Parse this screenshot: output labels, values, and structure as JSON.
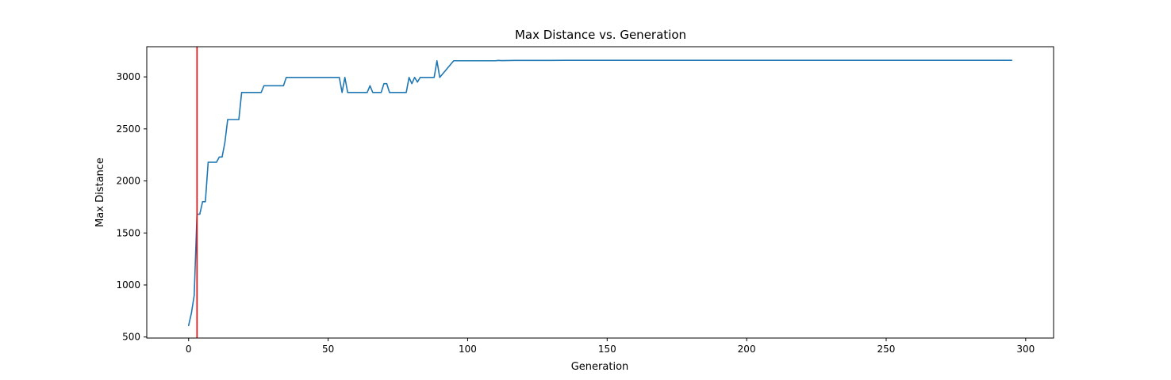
{
  "chart_data": {
    "type": "line",
    "title": "Max Distance vs. Generation",
    "xlabel": "Generation",
    "ylabel": "Max Distance",
    "xlim": [
      -15,
      310
    ],
    "ylim": [
      490,
      3290
    ],
    "xticks": [
      0,
      50,
      100,
      150,
      200,
      250,
      300
    ],
    "yticks": [
      500,
      1000,
      1500,
      2000,
      2500,
      3000
    ],
    "grid": false,
    "legend": "none",
    "series": [
      {
        "color": "#1f77b4",
        "x": [
          0,
          1,
          2,
          3,
          4,
          5,
          6,
          7,
          8,
          9,
          10,
          11,
          12,
          13,
          14,
          15,
          16,
          17,
          18,
          19,
          20,
          21,
          22,
          23,
          24,
          25,
          26,
          27,
          28,
          29,
          30,
          31,
          32,
          33,
          34,
          35,
          36,
          37,
          38,
          39,
          40,
          41,
          42,
          43,
          44,
          45,
          46,
          47,
          48,
          49,
          50,
          51,
          52,
          53,
          54,
          55,
          56,
          57,
          58,
          59,
          60,
          61,
          62,
          63,
          64,
          65,
          66,
          67,
          68,
          69,
          70,
          71,
          72,
          73,
          74,
          75,
          76,
          77,
          78,
          79,
          80,
          81,
          82,
          83,
          84,
          85,
          86,
          87,
          88,
          89,
          90,
          95,
          100,
          110,
          111,
          112,
          117,
          118,
          125,
          130,
          135,
          140,
          150,
          200,
          250,
          295
        ],
        "values": [
          610,
          730,
          900,
          1680,
          1680,
          1800,
          1800,
          2180,
          2180,
          2180,
          2180,
          2230,
          2230,
          2370,
          2590,
          2590,
          2590,
          2590,
          2590,
          2850,
          2850,
          2850,
          2850,
          2850,
          2850,
          2850,
          2850,
          2915,
          2915,
          2915,
          2915,
          2915,
          2915,
          2915,
          2915,
          2995,
          2995,
          2995,
          2995,
          2995,
          2995,
          2995,
          2995,
          2995,
          2995,
          2995,
          2995,
          2995,
          2995,
          2995,
          2995,
          2995,
          2995,
          2995,
          2995,
          2850,
          2995,
          2850,
          2850,
          2850,
          2850,
          2850,
          2850,
          2850,
          2850,
          2915,
          2850,
          2850,
          2850,
          2850,
          2935,
          2935,
          2850,
          2850,
          2850,
          2850,
          2850,
          2850,
          2850,
          2995,
          2935,
          2995,
          2950,
          2995,
          2995,
          2995,
          2995,
          2995,
          2995,
          3155,
          2995,
          3155,
          3155,
          3155,
          3158,
          3156,
          3158,
          3158,
          3158,
          3158,
          3159,
          3159,
          3159,
          3159,
          3159,
          3159
        ]
      }
    ],
    "annotations": [
      {
        "type": "vline",
        "x": 3,
        "color": "#ff0000"
      }
    ]
  }
}
